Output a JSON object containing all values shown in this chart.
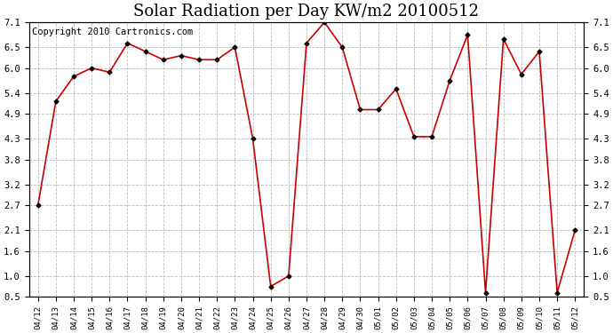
{
  "title": "Solar Radiation per Day KW/m2 20100512",
  "copyright_text": "Copyright 2010 Cartronics.com",
  "dates": [
    "04/12",
    "04/13",
    "04/14",
    "04/15",
    "04/16",
    "04/17",
    "04/18",
    "04/19",
    "04/20",
    "04/21",
    "04/22",
    "04/23",
    "04/24",
    "04/25",
    "04/26",
    "04/27",
    "04/28",
    "04/29",
    "04/30",
    "05/01",
    "05/02",
    "05/03",
    "05/04",
    "05/05",
    "05/06",
    "05/07",
    "05/08",
    "05/09",
    "05/10",
    "05/11",
    "05/12"
  ],
  "values": [
    2.7,
    5.2,
    5.8,
    6.0,
    5.9,
    6.6,
    6.4,
    6.2,
    6.3,
    6.2,
    6.2,
    6.5,
    4.3,
    0.75,
    1.0,
    6.6,
    7.1,
    6.5,
    5.0,
    5.0,
    5.5,
    4.35,
    4.35,
    5.7,
    6.8,
    0.6,
    6.7,
    5.85,
    6.4,
    0.6,
    2.1
  ],
  "ylim": [
    0.5,
    7.1
  ],
  "yticks": [
    0.5,
    1.0,
    1.6,
    2.1,
    2.7,
    3.2,
    3.8,
    4.3,
    4.9,
    5.4,
    6.0,
    6.5,
    7.1
  ],
  "line_color": "#cc0000",
  "marker_color": "#000000",
  "bg_color": "#ffffff",
  "grid_color": "#bbbbbb",
  "title_fontsize": 13,
  "copyright_fontsize": 7.5
}
